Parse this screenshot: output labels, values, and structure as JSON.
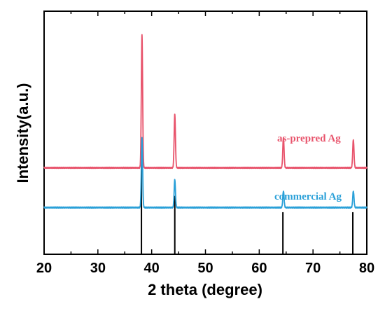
{
  "chart_data": {
    "type": "line",
    "xlabel": "2 theta (degree)",
    "ylabel": "Intensity(a.u.)",
    "xlim": [
      20,
      80
    ],
    "x_ticks": [
      20,
      30,
      40,
      50,
      60,
      70,
      80
    ],
    "y_ticks_shown": false,
    "grid": false,
    "legend": "inline text labels beneath each trace",
    "series": [
      {
        "name": "as-prepred Ag",
        "color": "#e8546c",
        "baseline": 3.7,
        "peaks": [
          {
            "x": 38.2,
            "height": 5.7
          },
          {
            "x": 44.3,
            "height": 2.3
          },
          {
            "x": 64.5,
            "height": 1.3
          },
          {
            "x": 77.5,
            "height": 1.2
          }
        ]
      },
      {
        "name": "commercial Ag",
        "color": "#2aa0d8",
        "baseline": 2.0,
        "peaks": [
          {
            "x": 38.2,
            "height": 3.0
          },
          {
            "x": 44.3,
            "height": 1.2
          },
          {
            "x": 64.5,
            "height": 0.7
          },
          {
            "x": 77.5,
            "height": 0.7
          }
        ]
      }
    ],
    "reference_lines": {
      "color": "#000000",
      "lines": [
        {
          "x": 38.1,
          "intensity": 4.0
        },
        {
          "x": 44.3,
          "intensity": 2.5
        },
        {
          "x": 64.4,
          "intensity": 1.8
        },
        {
          "x": 77.4,
          "intensity": 1.8
        }
      ]
    }
  }
}
